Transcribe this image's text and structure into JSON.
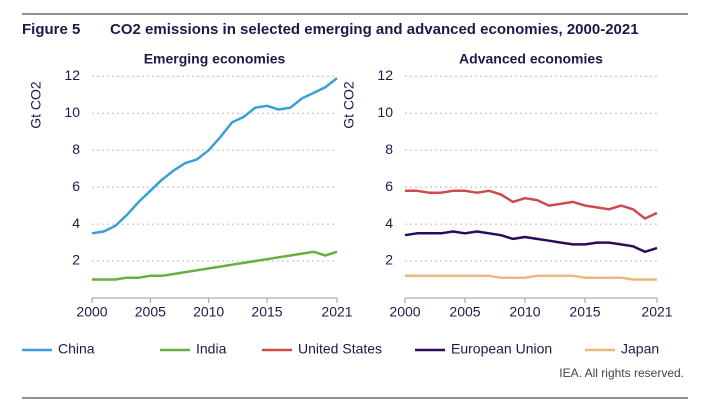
{
  "figure_label": "Figure 5",
  "figure_title": "CO2 emissions in selected emerging and advanced economies, 2000-2021",
  "source": "IEA. All rights reserved.",
  "chart_data": [
    {
      "type": "line",
      "title": "Emerging economies",
      "y_label": "Gt CO2",
      "x": [
        2000,
        2001,
        2002,
        2003,
        2004,
        2005,
        2006,
        2007,
        2008,
        2009,
        2010,
        2011,
        2012,
        2013,
        2014,
        2015,
        2016,
        2017,
        2018,
        2019,
        2020,
        2021
      ],
      "xlim": [
        2000,
        2021
      ],
      "xticks": [
        2000,
        2005,
        2010,
        2015,
        2021
      ],
      "ylim": [
        0,
        12.5
      ],
      "yticks": [
        2,
        4,
        6,
        8,
        10,
        12
      ],
      "grid": true,
      "series": [
        {
          "name": "China",
          "color": "#3a9fd9",
          "values": [
            3.5,
            3.6,
            3.9,
            4.5,
            5.2,
            5.8,
            6.4,
            6.9,
            7.3,
            7.5,
            8.0,
            8.7,
            9.5,
            9.8,
            10.3,
            10.4,
            10.2,
            10.3,
            10.8,
            11.1,
            11.4,
            11.9
          ]
        },
        {
          "name": "India",
          "color": "#6aae3f",
          "values": [
            1.0,
            1.0,
            1.0,
            1.1,
            1.1,
            1.2,
            1.2,
            1.3,
            1.4,
            1.5,
            1.6,
            1.7,
            1.8,
            1.9,
            2.0,
            2.1,
            2.2,
            2.3,
            2.4,
            2.5,
            2.3,
            2.5
          ]
        }
      ]
    },
    {
      "type": "line",
      "title": "Advanced economies",
      "y_label": "Gt CO2",
      "x": [
        2000,
        2001,
        2002,
        2003,
        2004,
        2005,
        2006,
        2007,
        2008,
        2009,
        2010,
        2011,
        2012,
        2013,
        2014,
        2015,
        2016,
        2017,
        2018,
        2019,
        2020,
        2021
      ],
      "xlim": [
        2000,
        2021
      ],
      "xticks": [
        2000,
        2005,
        2010,
        2015,
        2021
      ],
      "ylim": [
        0,
        12.5
      ],
      "yticks": [
        2,
        4,
        6,
        8,
        10,
        12
      ],
      "grid": true,
      "series": [
        {
          "name": "United States",
          "color": "#cf4a4c",
          "values": [
            5.8,
            5.8,
            5.7,
            5.7,
            5.8,
            5.8,
            5.7,
            5.8,
            5.6,
            5.2,
            5.4,
            5.3,
            5.0,
            5.1,
            5.2,
            5.0,
            4.9,
            4.8,
            5.0,
            4.8,
            4.3,
            4.6
          ]
        },
        {
          "name": "European Union",
          "color": "#2b0b5c",
          "values": [
            3.4,
            3.5,
            3.5,
            3.5,
            3.6,
            3.5,
            3.6,
            3.5,
            3.4,
            3.2,
            3.3,
            3.2,
            3.1,
            3.0,
            2.9,
            2.9,
            3.0,
            3.0,
            2.9,
            2.8,
            2.5,
            2.7
          ]
        },
        {
          "name": "Japan",
          "color": "#e9b97b",
          "values": [
            1.2,
            1.2,
            1.2,
            1.2,
            1.2,
            1.2,
            1.2,
            1.2,
            1.1,
            1.1,
            1.1,
            1.2,
            1.2,
            1.2,
            1.2,
            1.1,
            1.1,
            1.1,
            1.1,
            1.0,
            1.0,
            1.0
          ]
        }
      ]
    }
  ]
}
